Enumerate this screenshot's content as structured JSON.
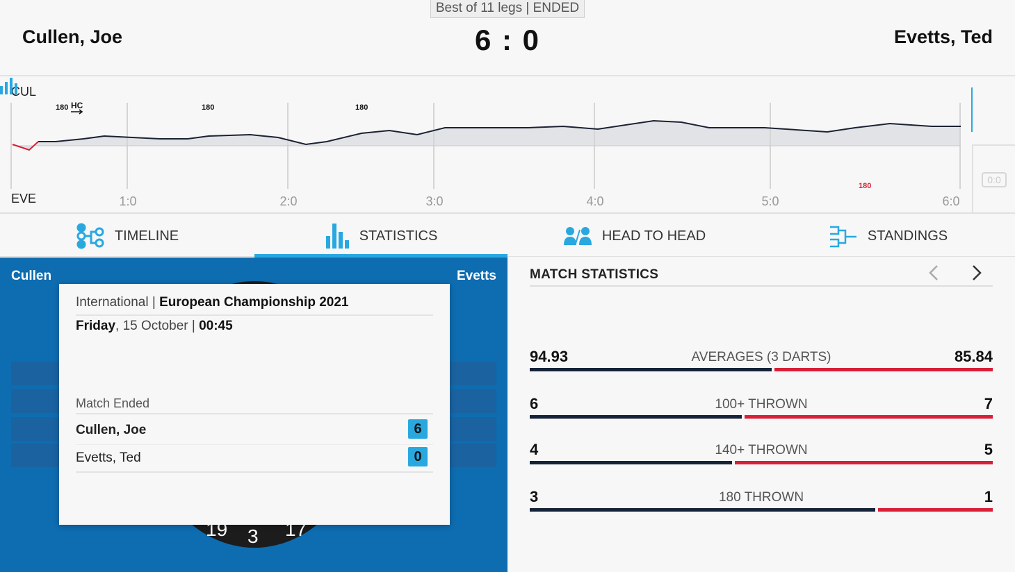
{
  "header": {
    "format": "Best of 11 legs | ENDED",
    "home_player": "Cullen, Joe",
    "away_player": "Evetts, Ted",
    "score": "6 : 0"
  },
  "timeline": {
    "top_label": "CUL",
    "bottom_label": "EVE",
    "leg_labels": [
      "1:0",
      "2:0",
      "3:0",
      "4:0",
      "5:0",
      "6:0"
    ],
    "markers_home": [
      "180",
      "180",
      "180"
    ],
    "marker_hc": "HC",
    "markers_away": [
      "180"
    ],
    "zero_box": "0:0",
    "colors": {
      "home_line": "#1b2233",
      "away_line": "#d81f37",
      "fill": "#e2e3e6"
    }
  },
  "tabs": [
    {
      "label": "TIMELINE",
      "icon": "timeline-icon",
      "active": false
    },
    {
      "label": "STATISTICS",
      "icon": "bar-chart-icon",
      "active": true
    },
    {
      "label": "HEAD TO HEAD",
      "icon": "head-to-head-icon",
      "active": false
    },
    {
      "label": "STANDINGS",
      "icon": "bracket-icon",
      "active": false
    }
  ],
  "left_panel": {
    "home_short": "Cullen",
    "away_short": "Evetts",
    "board_numbers": [
      "19",
      "3",
      "17"
    ],
    "popup": {
      "category": "International",
      "separator": "|",
      "tournament": "European Championship 2021",
      "day": "Friday",
      "date": ", 15 October | ",
      "time": "00:45",
      "status": "Match Ended",
      "players": [
        {
          "name": "Cullen, Joe",
          "legs": "6"
        },
        {
          "name": "Evetts, Ted",
          "legs": "0"
        }
      ]
    }
  },
  "match_statistics": {
    "title": "MATCH STATISTICS",
    "rows": [
      {
        "label": "AVERAGES (3 DARTS)",
        "home": "94.93",
        "away": "85.84",
        "home_share": 0.525
      },
      {
        "label": "100+ THROWN",
        "home": "6",
        "away": "7",
        "home_share": 0.46
      },
      {
        "label": "140+ THROWN",
        "home": "4",
        "away": "5",
        "home_share": 0.44
      },
      {
        "label": "180 THROWN",
        "home": "3",
        "away": "1",
        "home_share": 0.75
      }
    ],
    "colors": {
      "home": "#152238",
      "away": "#d81f37"
    }
  }
}
